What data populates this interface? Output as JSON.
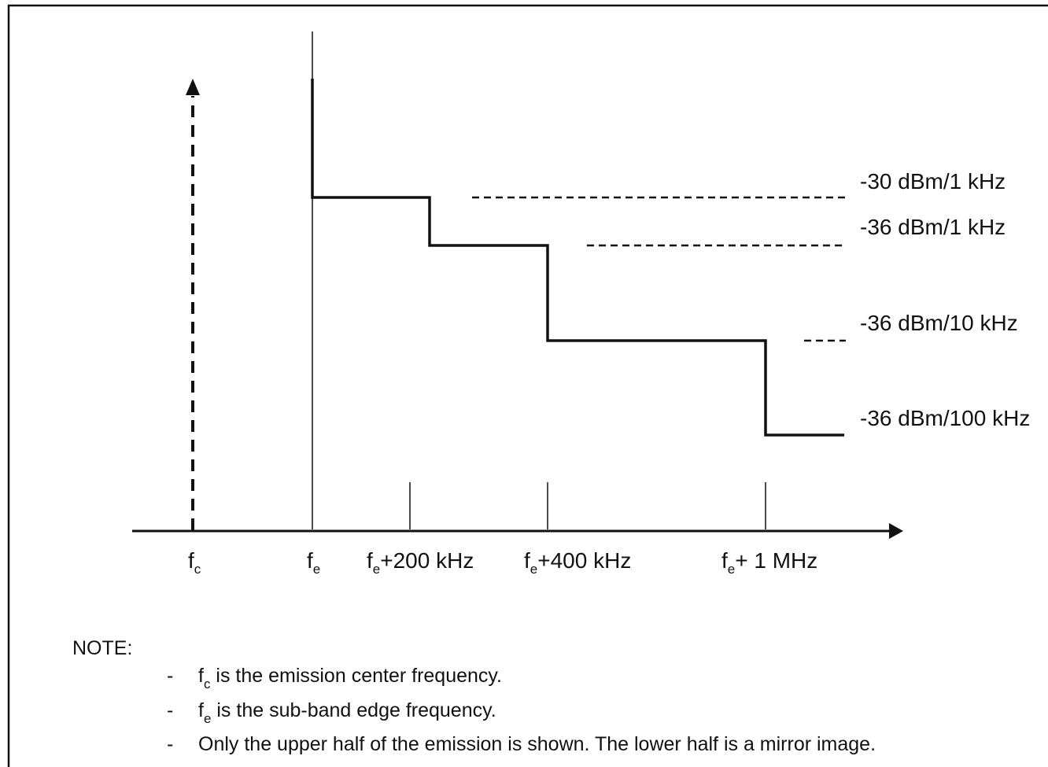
{
  "diagram": {
    "levels": [
      {
        "label": "-30 dBm/1 kHz"
      },
      {
        "label": "-36 dBm/1 kHz"
      },
      {
        "label": "-36 dBm/10 kHz"
      },
      {
        "label": "-36 dBm/100 kHz"
      }
    ],
    "x_labels": {
      "fc": {
        "base": "f",
        "sub": "c",
        "suffix": ""
      },
      "fe": {
        "base": "f",
        "sub": "e",
        "suffix": ""
      },
      "fe200": {
        "base": "f",
        "sub": "e",
        "suffix": "+200 kHz"
      },
      "fe400": {
        "base": "f",
        "sub": "e",
        "suffix": "+400 kHz"
      },
      "fe1m": {
        "base": "f",
        "sub": "e",
        "suffix": "+ 1 MHz"
      }
    }
  },
  "note": {
    "heading": "NOTE:",
    "items": [
      {
        "bullet": "-",
        "base": "f",
        "sub": "c",
        "text": " is the emission center frequency."
      },
      {
        "bullet": "-",
        "base": "f",
        "sub": "e",
        "text": " is the sub-band edge frequency."
      },
      {
        "bullet": "-",
        "base": "",
        "sub": "",
        "text": "Only the upper half of the emission is shown. The lower half is a mirror image."
      }
    ]
  }
}
